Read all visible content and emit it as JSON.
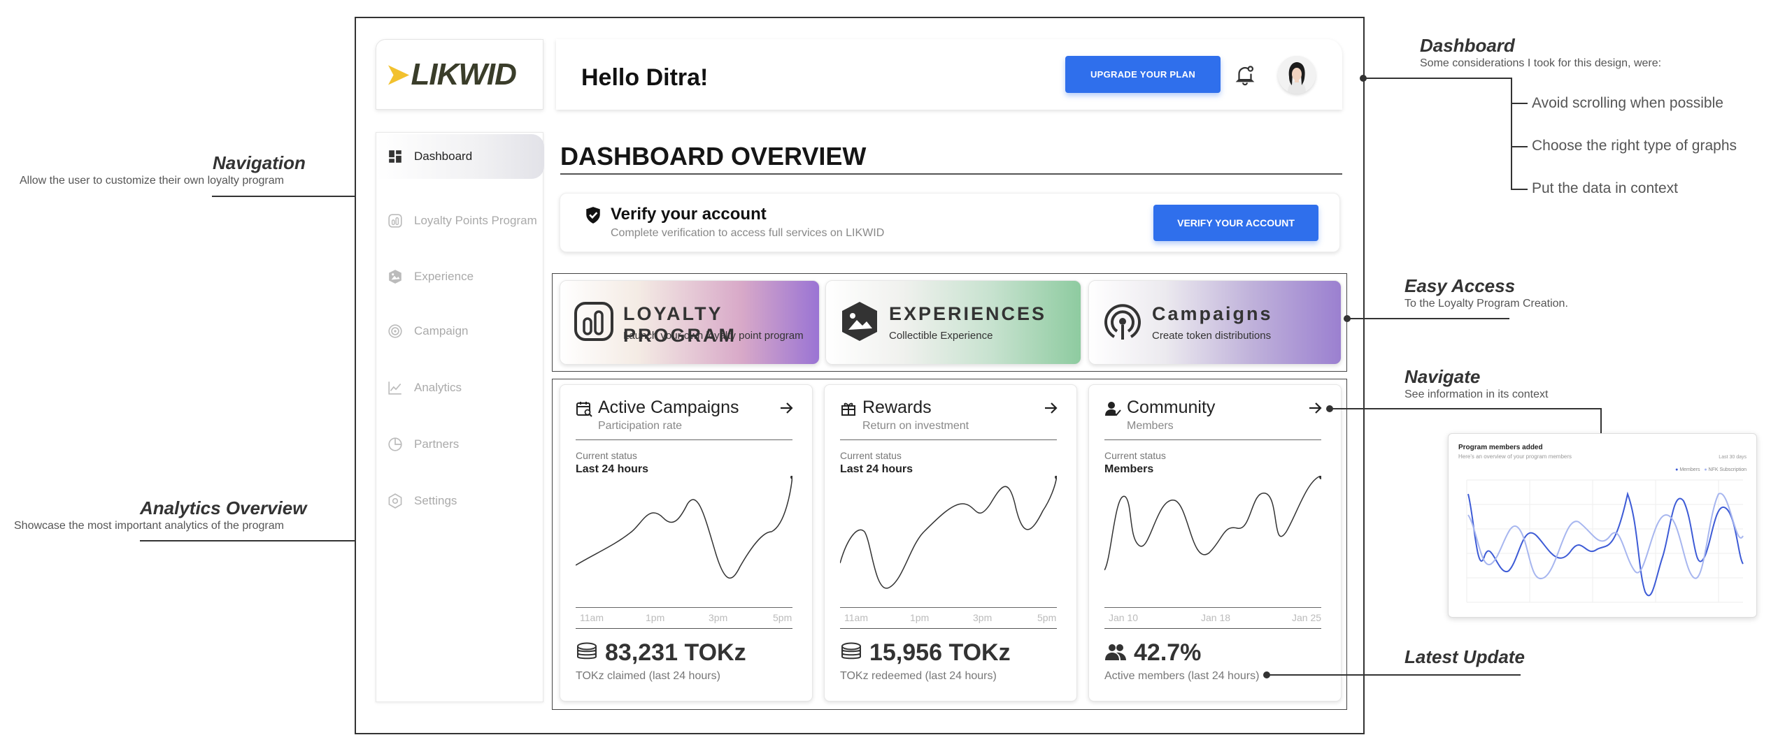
{
  "brand": {
    "logo": "LIKWID"
  },
  "header": {
    "greeting": "Hello Ditra!",
    "upgrade_label": "UPGRADE YOUR PLAN"
  },
  "sidebar": {
    "items": [
      {
        "label": "Dashboard",
        "icon": "dashboard-icon",
        "active": true
      },
      {
        "label": "Loyalty Points Program",
        "icon": "loyalty-icon"
      },
      {
        "label": "Experience",
        "icon": "experience-icon"
      },
      {
        "label": "Campaign",
        "icon": "campaign-icon"
      },
      {
        "label": "Analytics",
        "icon": "analytics-icon"
      },
      {
        "label": "Partners",
        "icon": "partners-icon"
      },
      {
        "label": "Settings",
        "icon": "settings-icon"
      }
    ]
  },
  "main": {
    "title": "DASHBOARD OVERVIEW",
    "verify": {
      "title": "Verify your account",
      "subtitle": "Complete verification to access full services on LIKWID",
      "button": "VERIFY YOUR ACCOUNT"
    },
    "features": [
      {
        "title": "LOYALTY PROGRAM",
        "subtitle": "Launch your own loyalty point program"
      },
      {
        "title": "EXPERIENCES",
        "subtitle": "Collectible Experience"
      },
      {
        "title": "Campaigns",
        "subtitle": "Create token distributions"
      }
    ],
    "cards": [
      {
        "title": "Active Campaigns",
        "subtitle": "Participation rate",
        "status": "Current status",
        "period": "Last 24 hours",
        "ticks": [
          "11am",
          "1pm",
          "3pm",
          "5pm"
        ],
        "value": "83,231 TOKz",
        "caption": "TOKz claimed (last 24 hours)"
      },
      {
        "title": "Rewards",
        "subtitle": "Return on investment",
        "status": "Current status",
        "period": "Last 24 hours",
        "ticks": [
          "11am",
          "1pm",
          "3pm",
          "5pm"
        ],
        "value": "15,956 TOKz",
        "caption": "TOKz redeemed (last 24 hours)"
      },
      {
        "title": "Community",
        "subtitle": "Members",
        "status": "Current status",
        "period": "Members",
        "ticks": [
          "Jan 10",
          "Jan 18",
          "Jan 25"
        ],
        "value": "42.7%",
        "caption": "Active members (last 24 hours)"
      }
    ]
  },
  "annotations": {
    "navigation": {
      "title": "Navigation",
      "subtitle": "Allow the user to customize their own loyalty program"
    },
    "analytics": {
      "title": "Analytics Overview",
      "subtitle": "Showcase the most important analytics of the program"
    },
    "dashboard": {
      "title": "Dashboard",
      "subtitle": "Some considerations I took for this design, were:",
      "bullets": [
        "Avoid scrolling when possible",
        "Choose the right type of graphs",
        "Put the data in context"
      ]
    },
    "easy_access": {
      "title": "Easy Access",
      "subtitle": "To the Loyalty Program Creation."
    },
    "navigate": {
      "title": "Navigate",
      "subtitle": "See information in its context"
    },
    "latest": {
      "title": "Latest Update"
    }
  },
  "mini_chart": {
    "title": "Program members added",
    "subtitle": "Here's an overview of your program members",
    "range": "Last 30 days",
    "legend": [
      "Members",
      "NFK Subscription"
    ]
  },
  "colors": {
    "accent": "#2f6fec",
    "logo_mark": "#f2c12e"
  }
}
